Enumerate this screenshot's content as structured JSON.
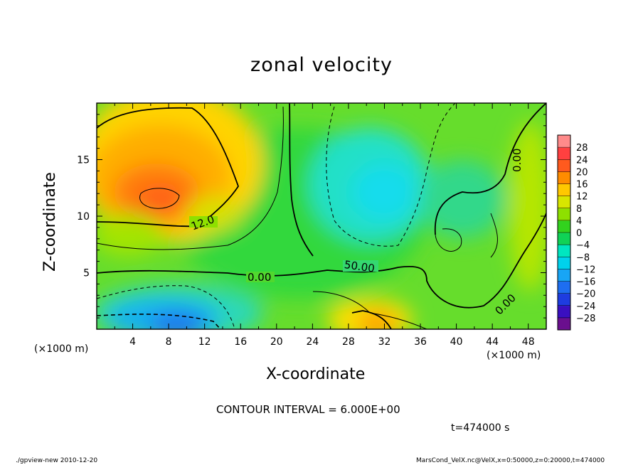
{
  "chart_data": {
    "type": "heatmap",
    "title": "zonal velocity",
    "xlabel": "X-coordinate",
    "ylabel": "Z-coordinate",
    "x_unit": "(×1000 m)",
    "y_unit": "(×1000 m)",
    "xlim": [
      0,
      50
    ],
    "ylim": [
      0,
      20
    ],
    "x_ticks": [
      "4",
      "8",
      "12",
      "16",
      "20",
      "24",
      "28",
      "32",
      "36",
      "40",
      "44",
      "48"
    ],
    "y_ticks": [
      "5",
      "10",
      "15"
    ],
    "colorbar_ticks": [
      "28",
      "24",
      "20",
      "16",
      "12",
      "8",
      "4",
      "0",
      "−4",
      "−8",
      "−12",
      "−16",
      "−20",
      "−24",
      "−28"
    ],
    "colorbar_colors": [
      "#6a0f8e",
      "#3a0fc0",
      "#1e3ce0",
      "#1e6ef0",
      "#18a5f5",
      "#00d2ec",
      "#00e6c0",
      "#10d256",
      "#32d21e",
      "#8ee000",
      "#d8e600",
      "#ffc800",
      "#ff8c00",
      "#ff5a1e",
      "#ff4040",
      "#ff8a8a"
    ],
    "contour_labels": [
      "12.0",
      "0.00",
      "50.00",
      "0.00",
      "0.00"
    ],
    "contour_interval": "CONTOUR INTERVAL = 6.000E+00",
    "time": "t=474000 s"
  },
  "footer": {
    "left": "./gpview-new  2010-12-20",
    "right": "MarsCond_VelX.nc@VelX,x=0:50000,z=0:20000,t=474000"
  }
}
